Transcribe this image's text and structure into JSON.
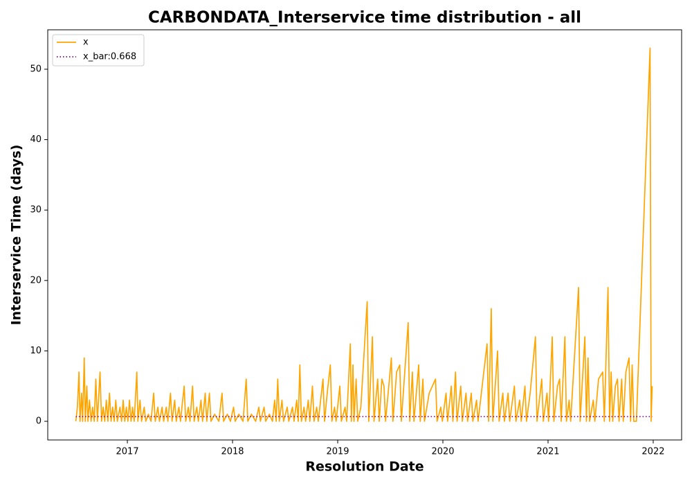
{
  "chart_data": {
    "type": "line",
    "title": "CARBONDATA_Interservice time distribution - all",
    "x_label": "Resolution Date",
    "y_label": "Interservice Time (days)",
    "xlim": [
      2016.243,
      2022.27
    ],
    "ylim": [
      -2.65,
      55.6
    ],
    "xticks": [
      2017,
      2018,
      2019,
      2020,
      2021,
      2022
    ],
    "yticks": [
      0,
      10,
      20,
      30,
      40,
      50
    ],
    "legend": "upper left",
    "series": [
      {
        "name": "x",
        "color": "#ffa500",
        "style": "solid",
        "x": [
          2016.51,
          2016.525,
          2016.54,
          2016.55,
          2016.565,
          2016.575,
          2016.59,
          2016.6,
          2016.615,
          2016.625,
          2016.64,
          2016.655,
          2016.67,
          2016.685,
          2016.7,
          2016.715,
          2016.74,
          2016.755,
          2016.77,
          2016.785,
          2016.8,
          2016.815,
          2016.83,
          2016.845,
          2016.86,
          2016.875,
          2016.89,
          2016.905,
          2016.93,
          2016.945,
          2016.96,
          2016.975,
          2016.99,
          2017.005,
          2017.02,
          2017.035,
          2017.05,
          2017.065,
          2017.09,
          2017.1,
          2017.12,
          2017.135,
          2017.16,
          2017.175,
          2017.2,
          2017.225,
          2017.25,
          2017.265,
          2017.29,
          2017.305,
          2017.33,
          2017.345,
          2017.37,
          2017.385,
          2017.41,
          2017.425,
          2017.45,
          2017.465,
          2017.49,
          2017.505,
          2017.54,
          2017.555,
          2017.58,
          2017.595,
          2017.62,
          2017.635,
          2017.66,
          2017.675,
          2017.7,
          2017.715,
          2017.74,
          2017.755,
          2017.78,
          2017.795,
          2017.83,
          2017.87,
          2017.9,
          2017.915,
          2017.95,
          2017.98,
          2018.01,
          2018.025,
          2018.06,
          2018.1,
          2018.13,
          2018.145,
          2018.18,
          2018.22,
          2018.25,
          2018.265,
          2018.3,
          2018.315,
          2018.35,
          2018.38,
          2018.4,
          2018.415,
          2018.43,
          2018.445,
          2018.47,
          2018.485,
          2018.52,
          2018.535,
          2018.57,
          2018.585,
          2018.61,
          2018.625,
          2018.64,
          2018.655,
          2018.68,
          2018.695,
          2018.72,
          2018.735,
          2018.76,
          2018.775,
          2018.8,
          2018.815,
          2018.86,
          2018.875,
          2018.9,
          2018.93,
          2018.945,
          2018.97,
          2018.985,
          2019.02,
          2019.035,
          2019.07,
          2019.085,
          2019.12,
          2019.13,
          2019.145,
          2019.155,
          2019.175,
          2019.19,
          2019.22,
          2019.28,
          2019.295,
          2019.33,
          2019.345,
          2019.38,
          2019.395,
          2019.42,
          2019.44,
          2019.455,
          2019.51,
          2019.525,
          2019.56,
          2019.59,
          2019.605,
          2019.67,
          2019.685,
          2019.71,
          2019.725,
          2019.77,
          2019.785,
          2019.81,
          2019.825,
          2019.87,
          2019.93,
          2019.945,
          2019.98,
          2019.995,
          2020.03,
          2020.045,
          2020.08,
          2020.095,
          2020.12,
          2020.135,
          2020.17,
          2020.185,
          2020.22,
          2020.235,
          2020.27,
          2020.285,
          2020.32,
          2020.335,
          2020.42,
          2020.435,
          2020.46,
          2020.475,
          2020.52,
          2020.535,
          2020.57,
          2020.585,
          2020.62,
          2020.635,
          2020.68,
          2020.695,
          2020.73,
          2020.745,
          2020.78,
          2020.795,
          2020.83,
          2020.88,
          2020.895,
          2020.94,
          2020.955,
          2020.99,
          2021.005,
          2021.04,
          2021.055,
          2021.09,
          2021.11,
          2021.125,
          2021.16,
          2021.175,
          2021.2,
          2021.215,
          2021.29,
          2021.305,
          2021.35,
          2021.365,
          2021.38,
          2021.395,
          2021.43,
          2021.445,
          2021.48,
          2021.52,
          2021.535,
          2021.57,
          2021.585,
          2021.6,
          2021.615,
          2021.64,
          2021.66,
          2021.675,
          2021.7,
          2021.715,
          2021.74,
          2021.77,
          2021.785,
          2021.8,
          2021.815,
          2021.84,
          2021.97,
          2021.98,
          2021.99
        ],
        "values": [
          0,
          2,
          7,
          0,
          4,
          0,
          9,
          0,
          5,
          0,
          3,
          0,
          2,
          0,
          6,
          0,
          7,
          0,
          2,
          0,
          3,
          0,
          4,
          0,
          2,
          0,
          3,
          0,
          2,
          0,
          3,
          0,
          2,
          0,
          3,
          0,
          2,
          0,
          7,
          0,
          3,
          0,
          2,
          0,
          1,
          0,
          4,
          0,
          2,
          0,
          2,
          0,
          2,
          0,
          4,
          0,
          3,
          0,
          2,
          0,
          5,
          0,
          2,
          0,
          5,
          0,
          2,
          0,
          3,
          0,
          4,
          0,
          4,
          0,
          1,
          0,
          4,
          0,
          1,
          0,
          2,
          0,
          1,
          0,
          6,
          0,
          1,
          0,
          2,
          0,
          2,
          0,
          1,
          0,
          3,
          0,
          6,
          0,
          3,
          0,
          2,
          0,
          2,
          0,
          3,
          0,
          8,
          0,
          2,
          0,
          3,
          0,
          5,
          0,
          2,
          0,
          6,
          0,
          4,
          8,
          0,
          2,
          0,
          5,
          0,
          2,
          0,
          11,
          0,
          8,
          0,
          6,
          0,
          2,
          17,
          0,
          12,
          0,
          6,
          0,
          6,
          5,
          0,
          9,
          0,
          7,
          8,
          0,
          14,
          0,
          7,
          0,
          8,
          0,
          6,
          0,
          4,
          6,
          0,
          2,
          0,
          4,
          0,
          5,
          0,
          7,
          0,
          5,
          0,
          4,
          0,
          4,
          0,
          3,
          0,
          11,
          0,
          16,
          0,
          10,
          0,
          4,
          0,
          4,
          0,
          5,
          0,
          3,
          0,
          5,
          0,
          4,
          12,
          0,
          6,
          0,
          4,
          0,
          12,
          0,
          5,
          6,
          0,
          12,
          0,
          3,
          0,
          19,
          0,
          12,
          0,
          9,
          0,
          3,
          0,
          6,
          7,
          0,
          19,
          0,
          7,
          0,
          5,
          6,
          0,
          6,
          0,
          7,
          9,
          0,
          8,
          0,
          0,
          53,
          0,
          5
        ]
      },
      {
        "name": "x_bar:0.668",
        "color": "#800080",
        "style": "dotted",
        "x": [
          2016.51,
          2021.99
        ],
        "values": [
          0.668,
          0.668
        ]
      }
    ]
  }
}
